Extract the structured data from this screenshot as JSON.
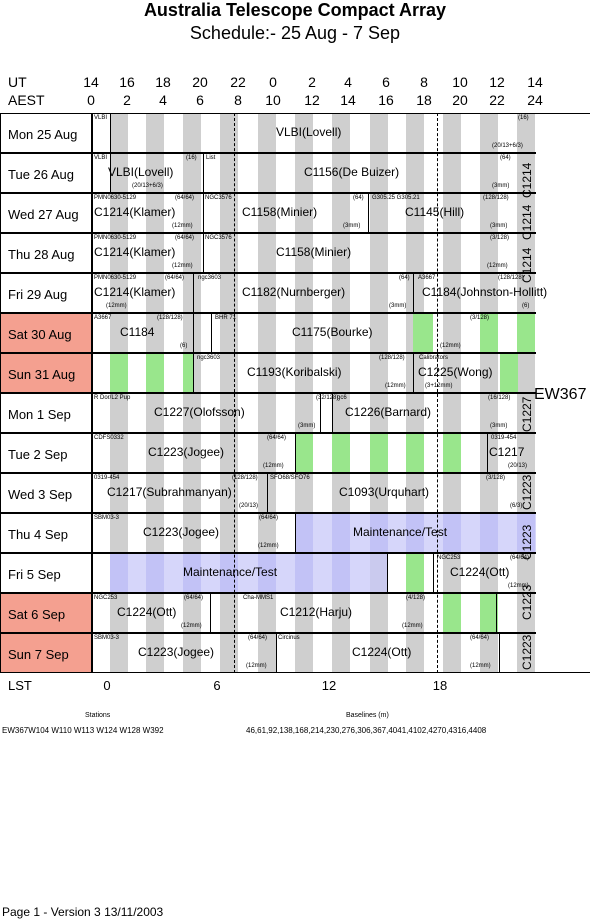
{
  "title": "Australia Telescope Compact Array",
  "subtitle": "Schedule:- 25 Aug - 7  Sep",
  "header": {
    "ut_label": "UT",
    "aest_label": "AEST",
    "ut_ticks": [
      "14",
      "16",
      "18",
      "20",
      "22",
      "0",
      "2",
      "4",
      "6",
      "8",
      "10",
      "12",
      "14"
    ],
    "aest_ticks": [
      "0",
      "2",
      "4",
      "6",
      "8",
      "10",
      "12",
      "14",
      "16",
      "18",
      "20",
      "22",
      "24"
    ]
  },
  "lst": {
    "label": "LST",
    "ticks": [
      "0",
      "6",
      "12",
      "18"
    ]
  },
  "colors": {
    "weekend": "#f4a090",
    "maintenance": "#c8c8f8",
    "green": "#99e68c",
    "stripe": "#cfcfcf"
  },
  "days": [
    {
      "label": "Mon  25 Aug",
      "weekend": false,
      "tiny": [
        {
          "t": "VLBI"
        },
        {
          "t": "(16)"
        },
        {
          "t": "(20/13+6/3)"
        }
      ],
      "projects": [
        {
          "t": "VLBI(Lovell)"
        }
      ]
    },
    {
      "label": "Tue  26 Aug",
      "weekend": false,
      "tiny": [
        {
          "t": "VLBI"
        },
        {
          "t": "(16)"
        },
        {
          "t": "List"
        },
        {
          "t": "(20/13+6/3)"
        },
        {
          "t": "(64)"
        },
        {
          "t": "(3mm)"
        }
      ],
      "projects": [
        {
          "t": "VLBI(Lovell)"
        },
        {
          "t": "C1156(De Buizer)"
        }
      ]
    },
    {
      "label": "Wed  27 Aug",
      "weekend": false,
      "tiny": [
        {
          "t": "PMN0630-5129"
        },
        {
          "t": "(64/64)"
        },
        {
          "t": "NGC3576"
        },
        {
          "t": "(12mm)"
        },
        {
          "t": "(64)"
        },
        {
          "t": "(3mm)"
        },
        {
          "t": "G305.25 G305.21"
        },
        {
          "t": "(128/128)"
        },
        {
          "t": "(3mm)"
        }
      ],
      "projects": [
        {
          "t": "C1214(Klamer)"
        },
        {
          "t": "C1158(Minier)"
        },
        {
          "t": "C1145(Hill)"
        }
      ]
    },
    {
      "label": "Thu  28 Aug",
      "weekend": false,
      "tiny": [
        {
          "t": "PMN0630-5129"
        },
        {
          "t": "(64/64)"
        },
        {
          "t": "NGC3576"
        },
        {
          "t": "(12mm)"
        },
        {
          "t": "(3/128)"
        },
        {
          "t": "(12mm)"
        }
      ],
      "projects": [
        {
          "t": "C1214(Klamer)"
        },
        {
          "t": "C1158(Minier)"
        }
      ]
    },
    {
      "label": "Fri    29 Aug",
      "weekend": false,
      "tiny": [
        {
          "t": "PMN0630-5129"
        },
        {
          "t": "(64/64)"
        },
        {
          "t": "ngc3603"
        },
        {
          "t": "(12mm)"
        },
        {
          "t": "(64)"
        },
        {
          "t": "(3mm)"
        },
        {
          "t": "A3667"
        },
        {
          "t": "(128/128)"
        },
        {
          "t": "(6)"
        }
      ],
      "projects": [
        {
          "t": "C1214(Klamer)"
        },
        {
          "t": "C1182(Nurnberger)"
        },
        {
          "t": "C1184(Johnston-Hollitt)"
        }
      ]
    },
    {
      "label": "Sat   30 Aug",
      "weekend": true,
      "tiny": [
        {
          "t": "A3667"
        },
        {
          "t": "(128/128)"
        },
        {
          "t": "(6)"
        },
        {
          "t": "BHR 71"
        },
        {
          "t": "(3/128)"
        },
        {
          "t": "(12mm)"
        }
      ],
      "projects": [
        {
          "t": "C1184"
        },
        {
          "t": "C1175(Bourke)"
        }
      ]
    },
    {
      "label": "Sun  31 Aug",
      "weekend": true,
      "tiny": [
        {
          "t": "ngc3603"
        },
        {
          "t": "(128/128)"
        },
        {
          "t": "Calibrators"
        },
        {
          "t": "(12mm)"
        },
        {
          "t": "(3+12mm)"
        }
      ],
      "projects": [
        {
          "t": "C1193(Koribalski)"
        },
        {
          "t": "C1225(Wong)"
        }
      ]
    },
    {
      "label": "Mon   1  Sep",
      "weekend": false,
      "tiny": [
        {
          "t": "R Dor/L2 Pup"
        },
        {
          "t": "(32/128)"
        },
        {
          "t": "(3mm)"
        },
        {
          "t": "gc6"
        },
        {
          "t": "(16/128)"
        },
        {
          "t": "(3mm)"
        }
      ],
      "projects": [
        {
          "t": "C1227(Olofsson)"
        },
        {
          "t": "C1226(Barnard)"
        }
      ]
    },
    {
      "label": "Tue   2  Sep",
      "weekend": false,
      "tiny": [
        {
          "t": "CDFS0332"
        },
        {
          "t": "(64/64)"
        },
        {
          "t": "(12mm)"
        },
        {
          "t": "0319-454"
        },
        {
          "t": "(20/13)"
        }
      ],
      "projects": [
        {
          "t": "C1223(Jogee)"
        },
        {
          "t": "C1217"
        }
      ]
    },
    {
      "label": "Wed   3  Sep",
      "weekend": false,
      "tiny": [
        {
          "t": "0319-454"
        },
        {
          "t": "(128/128)"
        },
        {
          "t": "(20/13)"
        },
        {
          "t": "SFO68/SFO76"
        },
        {
          "t": "(3/128)"
        },
        {
          "t": "(6/3)"
        }
      ],
      "projects": [
        {
          "t": "C1217(Subrahmanyan)"
        },
        {
          "t": "C1093(Urquhart)"
        }
      ]
    },
    {
      "label": "Thu   4  Sep",
      "weekend": false,
      "tiny": [
        {
          "t": "SBM03-3"
        },
        {
          "t": "(64/64)"
        },
        {
          "t": "(12mm)"
        }
      ],
      "projects": [
        {
          "t": "C1223(Jogee)"
        },
        {
          "t": "Maintenance/Test"
        }
      ]
    },
    {
      "label": "Fri     5  Sep",
      "weekend": false,
      "tiny": [
        {
          "t": "NGC253"
        },
        {
          "t": "(64/64)"
        },
        {
          "t": "(12mm)"
        }
      ],
      "projects": [
        {
          "t": "Maintenance/Test"
        },
        {
          "t": "C1224(Ott)"
        }
      ]
    },
    {
      "label": "Sat    6  Sep",
      "weekend": true,
      "tiny": [
        {
          "t": "NGC253"
        },
        {
          "t": "(64/64)"
        },
        {
          "t": "(12mm)"
        },
        {
          "t": "Cha-MMS1"
        },
        {
          "t": "(4/128)"
        },
        {
          "t": "(12mm)"
        }
      ],
      "projects": [
        {
          "t": "C1224(Ott)"
        },
        {
          "t": "C1212(Harju)"
        }
      ]
    },
    {
      "label": "Sun    7  Sep",
      "weekend": true,
      "tiny": [
        {
          "t": "SBM03-3"
        },
        {
          "t": "(64/64)"
        },
        {
          "t": "(12mm)"
        },
        {
          "t": "Circinus"
        },
        {
          "t": "(64/64)"
        },
        {
          "t": "(12mm)"
        }
      ],
      "projects": [
        {
          "t": "C1223(Jogee)"
        },
        {
          "t": "C1224(Ott)"
        }
      ]
    }
  ],
  "vertical_labels": [
    "C1214",
    "C1214",
    "C1214",
    "C1227",
    "C1223",
    "C1223",
    "C1223",
    "C1223"
  ],
  "right_label": "EW367",
  "footer_info": {
    "stations_heading": "Stations",
    "stations": "EW367W104 W110 W113 W124 W128 W392",
    "baselines_heading": "Baselines (m)",
    "baselines": "46,61,92,138,168,214,230,276,306,367,4041,4102,4270,4316,4408"
  },
  "footer": "Page 1 - Version 3  13/11/2003"
}
